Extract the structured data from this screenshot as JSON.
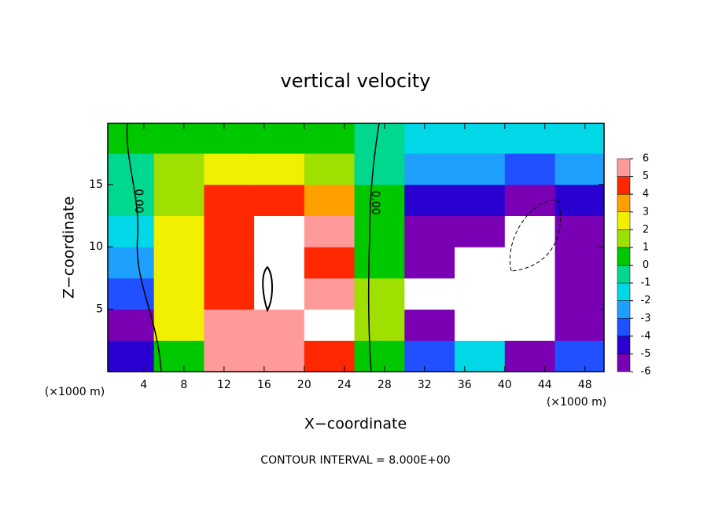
{
  "chart_data": {
    "type": "contour",
    "title": "vertical velocity",
    "x_label": "X−coordinate",
    "y_label": "Z−coordinate",
    "x_unit_left": "(×1000 m)",
    "x_unit_right": "(×1000 m)",
    "footer": "CONTOUR INTERVAL = 8.000E+00",
    "contour_labels": [
      "0.00",
      "0.00"
    ],
    "xlim": [
      0.4,
      49.9
    ],
    "ylim": [
      0,
      19.9
    ],
    "xticks": [
      4,
      8,
      12,
      16,
      20,
      24,
      28,
      32,
      36,
      40,
      44,
      48
    ],
    "yticks": [
      5,
      10,
      15
    ],
    "x": [
      2.5,
      7.5,
      12.5,
      17.5,
      22.5,
      27.5,
      32.5,
      37.5,
      42.5,
      47.5
    ],
    "y": [
      1.25,
      3.75,
      6.25,
      8.75,
      11.25,
      13.75,
      16.25,
      18.75
    ],
    "z": [
      [
        -4,
        1,
        6,
        6,
        5,
        1,
        -3,
        -1,
        -6,
        -3
      ],
      [
        -5,
        3,
        6,
        6,
        8,
        2,
        -5,
        -8,
        -8,
        -5
      ],
      [
        -3,
        3,
        5,
        8,
        6,
        2,
        -8,
        -8,
        -8,
        -5
      ],
      [
        -2,
        3,
        5,
        8,
        5,
        1,
        -6,
        -8,
        -8,
        -5
      ],
      [
        -1,
        3,
        5,
        8,
        6,
        1,
        -5,
        -5,
        -8,
        -5
      ],
      [
        -0.5,
        2,
        4.5,
        5,
        4,
        0.5,
        -4,
        -4,
        -5,
        -4
      ],
      [
        0,
        1.5,
        2.5,
        2.5,
        2,
        0,
        -2.5,
        -2.5,
        -3,
        -2.5
      ],
      [
        0.5,
        0.5,
        0.8,
        0.8,
        0.8,
        0,
        -1.5,
        -1.5,
        -1.8,
        -1.5
      ]
    ],
    "levels": [
      -6,
      -5,
      -4,
      -3,
      -2,
      -1,
      0,
      1,
      2,
      3,
      4,
      5,
      6
    ],
    "colors": [
      "#7a00b4",
      "#2a00d0",
      "#2050ff",
      "#1ea0ff",
      "#00d8e8",
      "#00d890",
      "#00c800",
      "#a0e000",
      "#f0f000",
      "#ffa000",
      "#ff2800",
      "#ff9a9a"
    ],
    "out_of_range_color": "#ffffff"
  }
}
